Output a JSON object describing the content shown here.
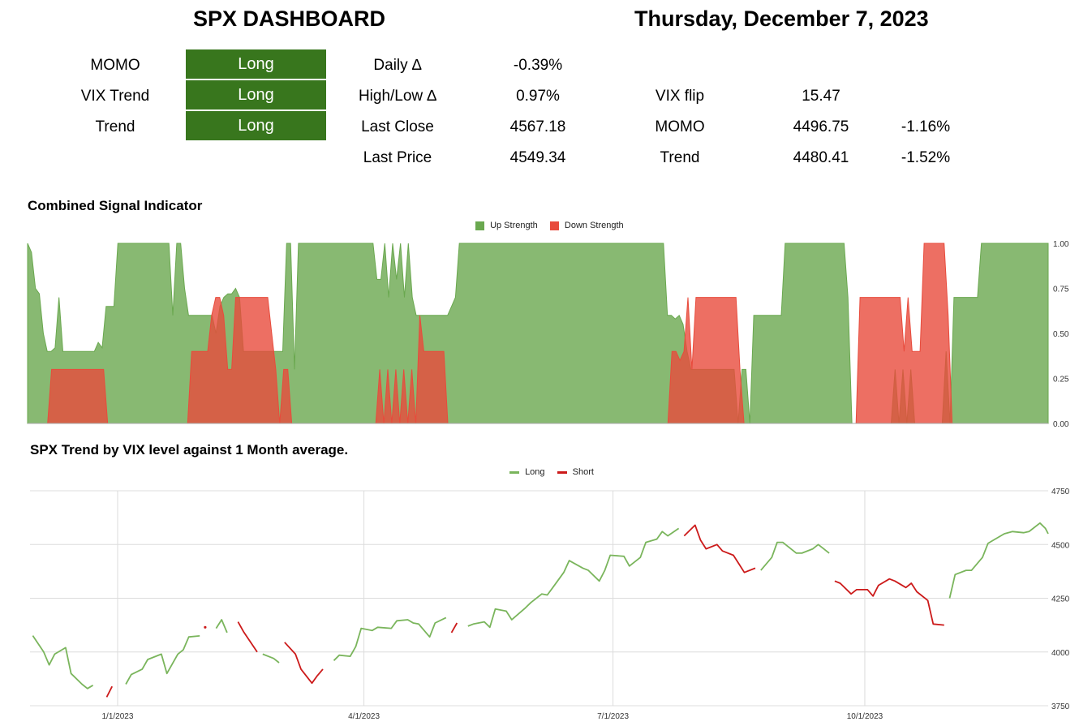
{
  "header": {
    "title": "SPX DASHBOARD",
    "date": "Thursday, December 7, 2023"
  },
  "signals": [
    {
      "label": "MOMO",
      "value": "Long"
    },
    {
      "label": "VIX Trend",
      "value": "Long"
    },
    {
      "label": "Trend",
      "value": "Long"
    }
  ],
  "stats": [
    {
      "label": "Daily ∆",
      "value": "-0.39%"
    },
    {
      "label": "High/Low ∆",
      "value": "0.97%"
    },
    {
      "label": "Last Close",
      "value": "4567.18"
    },
    {
      "label": "Last Price",
      "value": "4549.34"
    }
  ],
  "levels": [
    {
      "label": "VIX flip",
      "value": "15.47",
      "pct": ""
    },
    {
      "label": "MOMO",
      "value": "4496.75",
      "pct": "-1.16%"
    },
    {
      "label": "Trend",
      "value": "4480.41",
      "pct": "-1.52%"
    }
  ],
  "colors": {
    "badge_green": "#38761d",
    "up": "#6aa84f",
    "down": "#e84b3c",
    "long": "#7ab55c",
    "short": "#cc1a1a"
  },
  "chart_data": [
    {
      "type": "area",
      "title": "Combined Signal Indicator",
      "legend": "top",
      "ylim": [
        0,
        1
      ],
      "yticks": [
        "1.00",
        "0.75",
        "0.50",
        "0.25",
        "0.00"
      ],
      "series": [
        {
          "name": "Up Strength",
          "color": "#6aa84f",
          "values": [
            1.0,
            0.95,
            0.75,
            0.72,
            0.5,
            0.4,
            0.4,
            0.42,
            0.7,
            0.4,
            0.4,
            0.4,
            0.4,
            0.4,
            0.4,
            0.4,
            0.4,
            0.4,
            0.45,
            0.42,
            0.65,
            0.65,
            0.65,
            1.0,
            1.0,
            1.0,
            1.0,
            1.0,
            1.0,
            1.0,
            1.0,
            1.0,
            1.0,
            1.0,
            1.0,
            1.0,
            1.0,
            0.6,
            1.0,
            1.0,
            0.75,
            0.6,
            0.6,
            0.6,
            0.6,
            0.6,
            0.6,
            0.6,
            0.5,
            0.65,
            0.7,
            0.72,
            0.72,
            0.75,
            0.7,
            0.4,
            0.4,
            0.4,
            0.4,
            0.4,
            0.4,
            0.4,
            0.4,
            0.4,
            0.4,
            0.4,
            1.0,
            1.0,
            0.3,
            1.0,
            1.0,
            1.0,
            1.0,
            1.0,
            1.0,
            1.0,
            1.0,
            1.0,
            1.0,
            1.0,
            1.0,
            1.0,
            1.0,
            1.0,
            1.0,
            1.0,
            1.0,
            1.0,
            1.0,
            0.8,
            0.8,
            1.0,
            0.7,
            1.0,
            0.8,
            1.0,
            0.7,
            1.0,
            0.7,
            0.6,
            0.6,
            0.6,
            0.6,
            0.6,
            0.6,
            0.6,
            0.6,
            0.6,
            0.65,
            0.7,
            1.0,
            1.0,
            1.0,
            1.0,
            1.0,
            1.0,
            1.0,
            1.0,
            1.0,
            1.0,
            1.0,
            1.0,
            1.0,
            1.0,
            1.0,
            1.0,
            1.0,
            1.0,
            1.0,
            1.0,
            1.0,
            1.0,
            1.0,
            1.0,
            1.0,
            1.0,
            1.0,
            1.0,
            1.0,
            1.0,
            1.0,
            1.0,
            1.0,
            1.0,
            1.0,
            1.0,
            1.0,
            1.0,
            1.0,
            1.0,
            1.0,
            1.0,
            1.0,
            1.0,
            1.0,
            1.0,
            1.0,
            1.0,
            1.0,
            1.0,
            1.0,
            1.0,
            1.0,
            0.6,
            0.6,
            0.58,
            0.6,
            0.55,
            0.4,
            0.3,
            0.3,
            0.3,
            0.3,
            0.3,
            0.3,
            0.3,
            0.3,
            0.3,
            0.3,
            0.3,
            0.3,
            0.0,
            0.3,
            0.3,
            0.0,
            0.6,
            0.6,
            0.6,
            0.6,
            0.6,
            0.6,
            0.6,
            0.6,
            1.0,
            1.0,
            1.0,
            1.0,
            1.0,
            1.0,
            1.0,
            1.0,
            1.0,
            1.0,
            1.0,
            1.0,
            1.0,
            1.0,
            1.0,
            1.0,
            0.7,
            0.0,
            0.0,
            0.0,
            0.0,
            0.0,
            0.0,
            0.0,
            0.0,
            0.0,
            0.0,
            0.0,
            0.3,
            0.0,
            0.3,
            0.0,
            0.3,
            0.0,
            0.0,
            0.0,
            0.0,
            0.0,
            0.0,
            0.0,
            0.0,
            0.4,
            0.0,
            0.7,
            0.7,
            0.7,
            0.7,
            0.7,
            0.7,
            0.7,
            1.0,
            1.0,
            1.0,
            1.0,
            1.0,
            1.0,
            1.0,
            1.0,
            1.0,
            1.0,
            1.0,
            1.0,
            1.0,
            1.0,
            1.0,
            1.0,
            1.0,
            1.0
          ]
        },
        {
          "name": "Down Strength",
          "color": "#e84b3c",
          "values": [
            0.0,
            0.0,
            0.0,
            0.0,
            0.0,
            0.0,
            0.3,
            0.3,
            0.3,
            0.3,
            0.3,
            0.3,
            0.3,
            0.3,
            0.3,
            0.3,
            0.3,
            0.3,
            0.3,
            0.3,
            0.0,
            0.0,
            0.0,
            0.0,
            0.0,
            0.0,
            0.0,
            0.0,
            0.0,
            0.0,
            0.0,
            0.0,
            0.0,
            0.0,
            0.0,
            0.0,
            0.0,
            0.0,
            0.0,
            0.0,
            0.0,
            0.4,
            0.4,
            0.4,
            0.4,
            0.4,
            0.6,
            0.7,
            0.7,
            0.6,
            0.3,
            0.3,
            0.7,
            0.7,
            0.7,
            0.7,
            0.7,
            0.7,
            0.7,
            0.7,
            0.7,
            0.5,
            0.3,
            0.0,
            0.3,
            0.3,
            0.0,
            0.0,
            0.0,
            0.0,
            0.0,
            0.0,
            0.0,
            0.0,
            0.0,
            0.0,
            0.0,
            0.0,
            0.0,
            0.0,
            0.0,
            0.0,
            0.0,
            0.0,
            0.0,
            0.0,
            0.0,
            0.0,
            0.3,
            0.0,
            0.3,
            0.0,
            0.3,
            0.0,
            0.3,
            0.0,
            0.3,
            0.0,
            0.6,
            0.4,
            0.4,
            0.4,
            0.4,
            0.4,
            0.4,
            0.0,
            0.0,
            0.0,
            0.0,
            0.0,
            0.0,
            0.0,
            0.0,
            0.0,
            0.0,
            0.0,
            0.0,
            0.0,
            0.0,
            0.0,
            0.0,
            0.0,
            0.0,
            0.0,
            0.0,
            0.0,
            0.0,
            0.0,
            0.0,
            0.0,
            0.0,
            0.0,
            0.0,
            0.0,
            0.0,
            0.0,
            0.0,
            0.0,
            0.0,
            0.0,
            0.0,
            0.0,
            0.0,
            0.0,
            0.0,
            0.0,
            0.0,
            0.0,
            0.0,
            0.0,
            0.0,
            0.0,
            0.0,
            0.0,
            0.0,
            0.0,
            0.0,
            0.0,
            0.0,
            0.0,
            0.0,
            0.4,
            0.4,
            0.35,
            0.4,
            0.7,
            0.3,
            0.7,
            0.7,
            0.7,
            0.7,
            0.7,
            0.7,
            0.7,
            0.7,
            0.7,
            0.7,
            0.7,
            0.3,
            0.0,
            0.0,
            0.0,
            0.0,
            0.0,
            0.0,
            0.0,
            0.0,
            0.0,
            0.0,
            0.0,
            0.0,
            0.0,
            0.0,
            0.0,
            0.0,
            0.0,
            0.0,
            0.0,
            0.0,
            0.0,
            0.0,
            0.0,
            0.0,
            0.0,
            0.0,
            0.0,
            0.0,
            0.0,
            0.7,
            0.7,
            0.7,
            0.7,
            0.7,
            0.7,
            0.7,
            0.7,
            0.7,
            0.7,
            0.7,
            0.4,
            0.7,
            0.4,
            0.4,
            0.4,
            1.0,
            1.0,
            1.0,
            1.0,
            1.0,
            1.0,
            0.6,
            0.0,
            0.0,
            0.0,
            0.0,
            0.0,
            0.0,
            0.0,
            0.0,
            0.0,
            0.0,
            0.0,
            0.0,
            0.0,
            0.0,
            0.0,
            0.0,
            0.0,
            0.0,
            0.0,
            0.0,
            0.0,
            0.0,
            0.0,
            0.0,
            0.0
          ]
        }
      ]
    },
    {
      "type": "line",
      "title": "SPX Trend by VIX level against 1 Month average.",
      "legend": "top",
      "ylim": [
        3750,
        4750
      ],
      "yticks": [
        "4750",
        "4500",
        "4250",
        "4000",
        "3750"
      ],
      "xlabels": [
        "1/1/2023",
        "4/1/2023",
        "7/1/2023",
        "10/1/2023"
      ],
      "x": [
        "2022-12-01",
        "2022-12-05",
        "2022-12-07",
        "2022-12-09",
        "2022-12-13",
        "2022-12-15",
        "2022-12-19",
        "2022-12-21",
        "2022-12-23",
        "2022-12-28",
        "2022-12-30",
        "2023-01-04",
        "2023-01-06",
        "2023-01-10",
        "2023-01-12",
        "2023-01-17",
        "2023-01-19",
        "2023-01-23",
        "2023-01-25",
        "2023-01-27",
        "2023-01-31",
        "2023-02-02",
        "2023-02-06",
        "2023-02-08",
        "2023-02-10",
        "2023-02-14",
        "2023-02-16",
        "2023-02-21",
        "2023-02-23",
        "2023-02-27",
        "2023-03-01",
        "2023-03-03",
        "2023-03-07",
        "2023-03-09",
        "2023-03-13",
        "2023-03-15",
        "2023-03-17",
        "2023-03-21",
        "2023-03-23",
        "2023-03-27",
        "2023-03-29",
        "2023-03-31",
        "2023-04-04",
        "2023-04-06",
        "2023-04-11",
        "2023-04-13",
        "2023-04-17",
        "2023-04-19",
        "2023-04-21",
        "2023-04-25",
        "2023-04-27",
        "2023-05-01",
        "2023-05-03",
        "2023-05-05",
        "2023-05-09",
        "2023-05-11",
        "2023-05-15",
        "2023-05-17",
        "2023-05-19",
        "2023-05-23",
        "2023-05-25",
        "2023-05-30",
        "2023-06-01",
        "2023-06-05",
        "2023-06-07",
        "2023-06-09",
        "2023-06-13",
        "2023-06-15",
        "2023-06-20",
        "2023-06-22",
        "2023-06-26",
        "2023-06-28",
        "2023-06-30",
        "2023-07-05",
        "2023-07-07",
        "2023-07-11",
        "2023-07-13",
        "2023-07-17",
        "2023-07-19",
        "2023-07-21",
        "2023-07-25",
        "2023-07-27",
        "2023-07-31",
        "2023-08-02",
        "2023-08-04",
        "2023-08-08",
        "2023-08-10",
        "2023-08-14",
        "2023-08-16",
        "2023-08-18",
        "2023-08-22",
        "2023-08-24",
        "2023-08-28",
        "2023-08-30",
        "2023-09-01",
        "2023-09-06",
        "2023-09-08",
        "2023-09-12",
        "2023-09-14",
        "2023-09-18",
        "2023-09-20",
        "2023-09-22",
        "2023-09-26",
        "2023-09-28",
        "2023-10-02",
        "2023-10-04",
        "2023-10-06",
        "2023-10-10",
        "2023-10-12",
        "2023-10-16",
        "2023-10-18",
        "2023-10-20",
        "2023-10-24",
        "2023-10-26",
        "2023-10-30",
        "2023-11-01",
        "2023-11-03",
        "2023-11-07",
        "2023-11-09",
        "2023-11-13",
        "2023-11-15",
        "2023-11-17",
        "2023-11-21",
        "2023-11-24",
        "2023-11-28",
        "2023-11-30",
        "2023-12-04",
        "2023-12-06",
        "2023-12-07"
      ],
      "series": [
        {
          "name": "Long",
          "color": "#7ab55c"
        },
        {
          "name": "Short",
          "color": "#cc1a1a"
        }
      ],
      "y": [
        4076,
        4000,
        3940,
        3990,
        4020,
        3900,
        3850,
        3830,
        3845,
        3790,
        3840,
        3850,
        3895,
        3920,
        3965,
        3990,
        3900,
        3990,
        4010,
        4070,
        4075,
        4115,
        4110,
        4150,
        4090,
        4140,
        4095,
        4000,
        3990,
        3970,
        3950,
        4045,
        3990,
        3920,
        3855,
        3890,
        3920,
        3960,
        3985,
        3980,
        4025,
        4110,
        4100,
        4115,
        4110,
        4145,
        4150,
        4135,
        4130,
        4070,
        4135,
        4160,
        4090,
        4135,
        4120,
        4130,
        4140,
        4115,
        4200,
        4190,
        4150,
        4205,
        4230,
        4270,
        4265,
        4300,
        4370,
        4425,
        4390,
        4380,
        4330,
        4380,
        4450,
        4445,
        4400,
        4440,
        4510,
        4525,
        4560,
        4540,
        4575,
        4540,
        4590,
        4520,
        4480,
        4500,
        4470,
        4450,
        4410,
        4370,
        4390,
        4380,
        4440,
        4510,
        4510,
        4460,
        4460,
        4480,
        4500,
        4460,
        4330,
        4320,
        4270,
        4290,
        4290,
        4260,
        4310,
        4340,
        4330,
        4300,
        4320,
        4280,
        4240,
        4130,
        4125,
        4250,
        4360,
        4380,
        4380,
        4440,
        4505,
        4520,
        4550,
        4560,
        4555,
        4560,
        4600,
        4575,
        4550
      ],
      "signal": [
        "L",
        "L",
        "L",
        "L",
        "L",
        "L",
        "L",
        "L",
        "L",
        "S",
        "S",
        "L",
        "L",
        "L",
        "L",
        "L",
        "L",
        "L",
        "L",
        "L",
        "L",
        "S",
        "L",
        "L",
        "L",
        "S",
        "S",
        "S",
        "L",
        "L",
        "L",
        "S",
        "S",
        "S",
        "S",
        "S",
        "S",
        "L",
        "L",
        "L",
        "L",
        "L",
        "L",
        "L",
        "L",
        "L",
        "L",
        "L",
        "L",
        "L",
        "L",
        "L",
        "S",
        "S",
        "L",
        "L",
        "L",
        "L",
        "L",
        "L",
        "L",
        "L",
        "L",
        "L",
        "L",
        "L",
        "L",
        "L",
        "L",
        "L",
        "L",
        "L",
        "L",
        "L",
        "L",
        "L",
        "L",
        "L",
        "L",
        "L",
        "L",
        "S",
        "S",
        "S",
        "S",
        "S",
        "S",
        "S",
        "S",
        "S",
        "S",
        "L",
        "L",
        "L",
        "L",
        "L",
        "L",
        "L",
        "L",
        "L",
        "S",
        "S",
        "S",
        "S",
        "S",
        "S",
        "S",
        "S",
        "S",
        "S",
        "S",
        "S",
        "S",
        "S",
        "S",
        "L",
        "L",
        "L",
        "L",
        "L",
        "L",
        "L",
        "L",
        "L",
        "L",
        "L",
        "L",
        "L",
        "L"
      ]
    }
  ]
}
